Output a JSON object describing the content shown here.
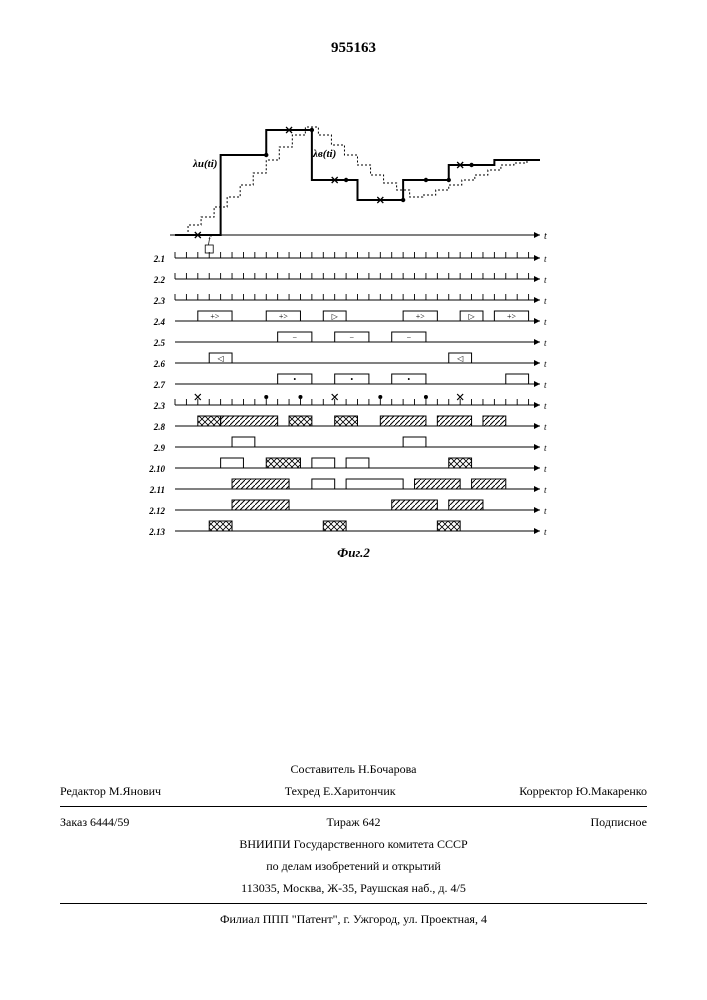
{
  "patent_number": "955163",
  "figure": {
    "caption": "Фиг.2",
    "colors": {
      "ink": "#000000",
      "bg": "#ffffff"
    },
    "main_chart": {
      "type": "step-line",
      "label_solid": "λи(ti)",
      "label_dotted": "λв(ti)",
      "x_axis_label": "t",
      "solid_points_y": [
        0,
        80,
        105,
        55,
        35,
        55,
        70,
        75
      ],
      "dotted_points_y": [
        0,
        10,
        18,
        28,
        38,
        50,
        62,
        75,
        88,
        100,
        108,
        100,
        90,
        80,
        70,
        60,
        52,
        45,
        38,
        40,
        45,
        50,
        55,
        60,
        65,
        70,
        72,
        75
      ],
      "markers_x_x": [
        2,
        10,
        14,
        18,
        25
      ],
      "markers_dot_x": [
        8,
        12,
        15,
        20,
        22,
        24,
        26
      ]
    },
    "timing_rows": [
      {
        "label": "2.1",
        "type": "ticks",
        "x_label": "t"
      },
      {
        "label": "2.2",
        "type": "ticks",
        "x_label": "t"
      },
      {
        "label": "2.3",
        "type": "ticks",
        "x_label": "t"
      },
      {
        "label": "2.4",
        "type": "pulses",
        "pulses": [
          {
            "x": 2,
            "w": 3,
            "sym": "+>"
          },
          {
            "x": 8,
            "w": 3,
            "sym": "+>"
          },
          {
            "x": 13,
            "w": 2,
            "sym": "▷"
          },
          {
            "x": 20,
            "w": 3,
            "sym": "+>"
          },
          {
            "x": 25,
            "w": 2,
            "sym": "▷"
          },
          {
            "x": 28,
            "w": 3,
            "sym": "+>"
          }
        ],
        "x_label": "t"
      },
      {
        "label": "2.5",
        "type": "pulses",
        "pulses": [
          {
            "x": 9,
            "w": 3,
            "sym": "−"
          },
          {
            "x": 14,
            "w": 3,
            "sym": "−"
          },
          {
            "x": 19,
            "w": 3,
            "sym": "−"
          }
        ],
        "x_label": "t"
      },
      {
        "label": "2.6",
        "type": "pulses",
        "pulses": [
          {
            "x": 3,
            "w": 2,
            "sym": "◁"
          },
          {
            "x": 24,
            "w": 2,
            "sym": "◁"
          }
        ],
        "x_label": "t"
      },
      {
        "label": "2.7",
        "type": "pulses",
        "pulses": [
          {
            "x": 9,
            "w": 3,
            "sym": "•"
          },
          {
            "x": 14,
            "w": 3,
            "sym": "•"
          },
          {
            "x": 19,
            "w": 3,
            "sym": "•"
          },
          {
            "x": 29,
            "w": 2,
            "sym": ""
          }
        ],
        "x_label": "t"
      },
      {
        "label": "2.3",
        "type": "ticks-marks",
        "x_label": "t",
        "marks": [
          {
            "x": 2,
            "t": "×"
          },
          {
            "x": 8,
            "t": "•"
          },
          {
            "x": 11,
            "t": "•"
          },
          {
            "x": 14,
            "t": "×"
          },
          {
            "x": 18,
            "t": "•"
          },
          {
            "x": 22,
            "t": "•"
          },
          {
            "x": 25,
            "t": "×"
          }
        ]
      },
      {
        "label": "2.8",
        "type": "pulses",
        "pulses": [
          {
            "x": 2,
            "w": 2,
            "fill": "cross"
          },
          {
            "x": 4,
            "w": 5,
            "fill": "hatch"
          },
          {
            "x": 10,
            "w": 2,
            "fill": "cross"
          },
          {
            "x": 14,
            "w": 2,
            "fill": "cross"
          },
          {
            "x": 18,
            "w": 4,
            "fill": "hatch"
          },
          {
            "x": 23,
            "w": 3,
            "fill": "hatch"
          },
          {
            "x": 27,
            "w": 2,
            "fill": "hatch"
          }
        ],
        "x_label": "t"
      },
      {
        "label": "2.9",
        "type": "pulses",
        "pulses": [
          {
            "x": 5,
            "w": 2,
            "fill": "none"
          },
          {
            "x": 20,
            "w": 2,
            "fill": "none"
          }
        ],
        "x_label": "t"
      },
      {
        "label": "2.10",
        "type": "pulses",
        "pulses": [
          {
            "x": 4,
            "w": 2,
            "fill": "none"
          },
          {
            "x": 8,
            "w": 3,
            "fill": "cross"
          },
          {
            "x": 12,
            "w": 2,
            "fill": "none"
          },
          {
            "x": 15,
            "w": 2,
            "fill": "none"
          },
          {
            "x": 24,
            "w": 2,
            "fill": "cross"
          }
        ],
        "x_label": "t"
      },
      {
        "label": "2.11",
        "type": "pulses",
        "pulses": [
          {
            "x": 5,
            "w": 5,
            "fill": "hatch"
          },
          {
            "x": 12,
            "w": 2,
            "fill": "none"
          },
          {
            "x": 15,
            "w": 5,
            "fill": "none"
          },
          {
            "x": 21,
            "w": 4,
            "fill": "hatch"
          },
          {
            "x": 26,
            "w": 3,
            "fill": "hatch"
          }
        ],
        "x_label": "t"
      },
      {
        "label": "2.12",
        "type": "pulses",
        "pulses": [
          {
            "x": 5,
            "w": 5,
            "fill": "hatch"
          },
          {
            "x": 19,
            "w": 4,
            "fill": "hatch"
          },
          {
            "x": 24,
            "w": 3,
            "fill": "hatch"
          }
        ],
        "x_label": "t"
      },
      {
        "label": "2.13",
        "type": "pulses",
        "pulses": [
          {
            "x": 3,
            "w": 2,
            "fill": "cross"
          },
          {
            "x": 13,
            "w": 2,
            "fill": "cross"
          },
          {
            "x": 23,
            "w": 2,
            "fill": "cross"
          }
        ],
        "x_label": "t"
      }
    ]
  },
  "footer": {
    "compiler": "Составитель Н.Бочарова",
    "editor": "Редактор М.Янович",
    "techred": "Техред Е.Харитончик",
    "corrector": "Корректор Ю.Макаренко",
    "order": "Заказ 6444/59",
    "tirazh": "Тираж 642",
    "subscription": "Подписное",
    "vniipi": "ВНИИПИ Государственного комитета СССР",
    "dept": "по делам изобретений и открытий",
    "address": "113035, Москва, Ж-35, Раушская наб., д. 4/5",
    "branch": "Филиал ППП \"Патент\", г. Ужгород, ул. Проектная, 4"
  }
}
